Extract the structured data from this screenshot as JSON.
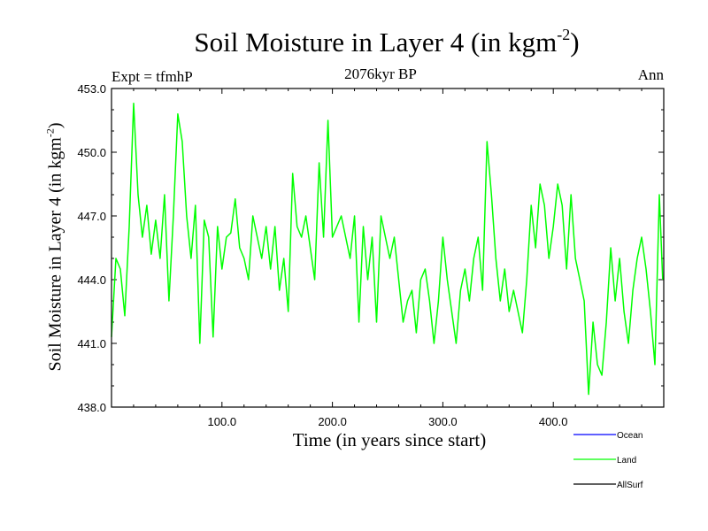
{
  "chart_data": {
    "type": "line",
    "title": "Soil Moisture in Layer 4 (in kgm",
    "title_superscript": "-2",
    "title_close": ")",
    "subtitle": "2076kyr BP",
    "left_annotation": "Expt = tfmhP",
    "right_annotation": "Ann",
    "xlabel": "Time (in years since start)",
    "ylabel": "Soil Moisture in Layer 4 (in kgm",
    "ylabel_superscript": "-2",
    "ylabel_close": ")",
    "xlim": [
      0,
      500
    ],
    "ylim": [
      438.0,
      453.0
    ],
    "x_ticks": [
      {
        "value": 100,
        "label": "100.0"
      },
      {
        "value": 200,
        "label": "200.0"
      },
      {
        "value": 300,
        "label": "300.0"
      },
      {
        "value": 400,
        "label": "400.0"
      }
    ],
    "y_ticks": [
      {
        "value": 438.0,
        "label": "438.0"
      },
      {
        "value": 441.0,
        "label": "441.0"
      },
      {
        "value": 444.0,
        "label": "444.0"
      },
      {
        "value": 447.0,
        "label": "447.0"
      },
      {
        "value": 450.0,
        "label": "450.0"
      },
      {
        "value": 453.0,
        "label": "453.0"
      }
    ],
    "legend": [
      {
        "name": "Ocean",
        "color": "#0000ff"
      },
      {
        "name": "Land",
        "color": "#00ff00"
      },
      {
        "name": "AllSurf",
        "color": "#000000"
      }
    ],
    "series": [
      {
        "name": "Land",
        "color": "#00ff00",
        "x": [
          0,
          4,
          8,
          12,
          16,
          20,
          24,
          28,
          32,
          36,
          40,
          44,
          48,
          52,
          56,
          60,
          64,
          68,
          72,
          76,
          80,
          84,
          88,
          92,
          96,
          100,
          104,
          108,
          112,
          116,
          120,
          124,
          128,
          132,
          136,
          140,
          144,
          148,
          152,
          156,
          160,
          164,
          168,
          172,
          176,
          180,
          184,
          188,
          192,
          196,
          200,
          204,
          208,
          212,
          216,
          220,
          224,
          228,
          232,
          236,
          240,
          244,
          248,
          252,
          256,
          260,
          264,
          268,
          272,
          276,
          280,
          284,
          288,
          292,
          296,
          300,
          304,
          308,
          312,
          316,
          320,
          324,
          328,
          332,
          336,
          340,
          344,
          348,
          352,
          356,
          360,
          364,
          368,
          372,
          376,
          380,
          384,
          388,
          392,
          396,
          400,
          404,
          408,
          412,
          416,
          420,
          424,
          428,
          432,
          436,
          440,
          444,
          448,
          452,
          456,
          460,
          464,
          468,
          472,
          476,
          480,
          484,
          488,
          492,
          496,
          499
        ],
        "values": [
          441.3,
          445.0,
          444.5,
          442.3,
          446.5,
          452.3,
          448.0,
          446.0,
          447.5,
          445.2,
          446.8,
          445.0,
          448.0,
          443.0,
          447.0,
          451.8,
          450.5,
          447.0,
          445.0,
          447.5,
          441.0,
          446.8,
          446.0,
          441.3,
          446.5,
          444.5,
          446.0,
          446.2,
          447.8,
          445.5,
          445.0,
          444.0,
          447.0,
          446.0,
          445.0,
          446.5,
          444.5,
          446.5,
          443.5,
          445.0,
          442.5,
          449.0,
          446.5,
          446.0,
          447.0,
          445.5,
          444.0,
          449.5,
          446.0,
          451.5,
          446.0,
          446.5,
          447.0,
          446.0,
          445.0,
          447.0,
          442.0,
          446.5,
          444.0,
          446.0,
          442.0,
          447.0,
          446.0,
          445.0,
          446.0,
          444.0,
          442.0,
          443.0,
          443.5,
          441.5,
          444.0,
          444.5,
          443.0,
          441.0,
          443.0,
          446.0,
          444.0,
          442.5,
          441.0,
          443.5,
          444.5,
          443.0,
          445.0,
          446.0,
          443.5,
          450.5,
          448.0,
          445.0,
          443.0,
          444.5,
          442.5,
          443.5,
          442.5,
          441.5,
          444.0,
          447.5,
          445.5,
          448.5,
          447.5,
          445.0,
          446.5,
          448.5,
          447.5,
          444.5,
          448.0,
          445.0,
          444.0,
          443.0,
          438.6,
          442.0,
          440.0,
          439.5,
          442.0,
          445.5,
          443.0,
          445.0,
          442.5,
          441.0,
          443.5,
          445.0,
          446.0,
          444.5,
          442.5,
          440.0,
          448.0,
          444.0
        ]
      }
    ]
  }
}
